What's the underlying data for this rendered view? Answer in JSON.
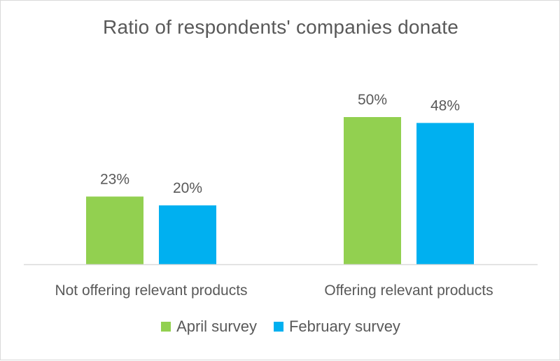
{
  "chart_data": {
    "type": "bar",
    "title": "Ratio of respondents' companies donate",
    "categories": [
      "Not offering relevant products",
      "Offering relevant products"
    ],
    "series": [
      {
        "name": "April survey",
        "color": "#92d050",
        "values": [
          23,
          50
        ],
        "labels": [
          "23%",
          "50%"
        ]
      },
      {
        "name": "February survey",
        "color": "#00b0f0",
        "values": [
          20,
          48
        ],
        "labels": [
          "20%",
          "48%"
        ]
      }
    ],
    "ylim": [
      0,
      60
    ],
    "unit": "%",
    "grid": false,
    "legend_position": "bottom",
    "axis_color": "#d9d9d9",
    "text_color": "#595959"
  }
}
